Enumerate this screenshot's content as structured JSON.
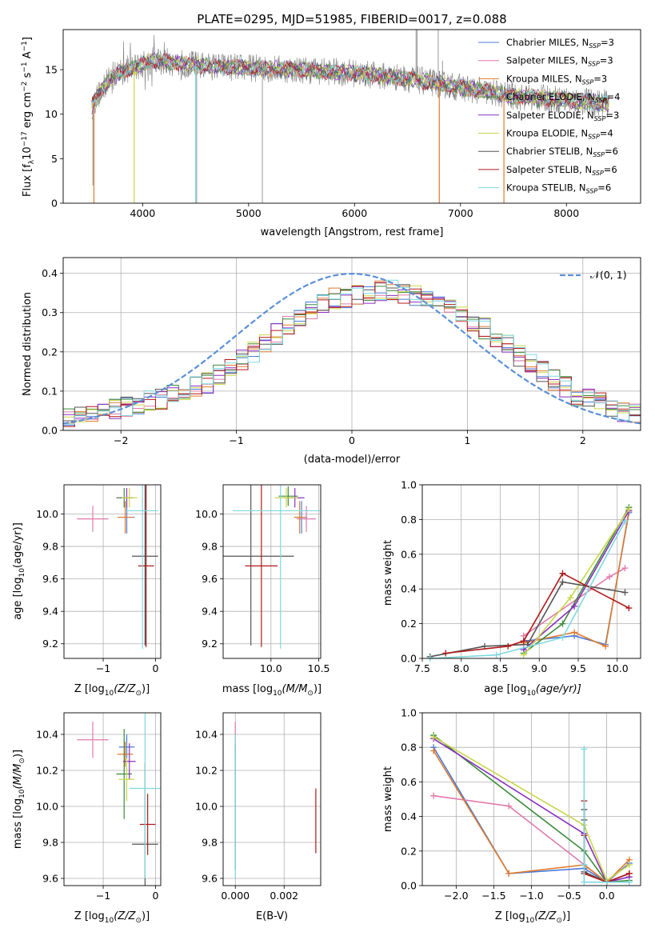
{
  "title": "PLATE=0295, MJD=51985, FIBERID=0017, z=0.088",
  "colors": {
    "Chabrier MILES": "#4b7bd8",
    "Salpeter MILES": "#e07aaa",
    "Kroupa MILES": "#e07b2e",
    "Chabrier ELODIE": "#3a8a3a",
    "Salpeter ELODIE": "#8a2fc0",
    "Kroupa ELODIE": "#c9d64a",
    "Chabrier STELIB": "#555555",
    "Salpeter STELIB": "#b01818",
    "Kroupa STELIB": "#7ed8e0",
    "gauss": "#5b8fd8",
    "grid": "#b0b0b0"
  },
  "chart_data": [
    {
      "id": "spectrum",
      "type": "line",
      "xlabel": "wavelength [Angstrom, rest frame]",
      "ylabel": "Flux [f",
      "ylabel_parts": [
        "Flux [f",
        "λ",
        "10",
        "−17",
        " erg cm",
        "−2",
        " s",
        "−1",
        " A",
        "−1",
        "]"
      ],
      "xlim": [
        3250,
        8700
      ],
      "ylim": [
        0,
        19.5
      ],
      "xticks": [
        4000,
        5000,
        6000,
        7000,
        8000
      ],
      "yticks": [
        0,
        5,
        10,
        15
      ],
      "legend_position": "top-right",
      "legend": [
        {
          "name": "Chabrier MILES, N",
          "sub": "SSP",
          "tail": "=3"
        },
        {
          "name": "Salpeter MILES, N",
          "sub": "SSP",
          "tail": "=3"
        },
        {
          "name": "Kroupa MILES, N",
          "sub": "SSP",
          "tail": "=3"
        },
        {
          "name": "Chabrier ELODIE, N",
          "sub": "SSP",
          "tail": "=4"
        },
        {
          "name": "Salpeter ELODIE, N",
          "sub": "SSP",
          "tail": "=3"
        },
        {
          "name": "Kroupa ELODIE, N",
          "sub": "SSP",
          "tail": "=4"
        },
        {
          "name": "Chabrier STELIB, N",
          "sub": "SSP",
          "tail": "=6"
        },
        {
          "name": "Salpeter STELIB, N",
          "sub": "SSP",
          "tail": "=6"
        },
        {
          "name": "Kroupa STELIB, N",
          "sub": "SSP",
          "tail": "=6"
        }
      ],
      "continuum": {
        "x": [
          3500,
          3600,
          3700,
          3800,
          3900,
          4000,
          4100,
          4300,
          4600,
          5000,
          5500,
          6000,
          6500,
          7000,
          7500,
          8000,
          8400
        ],
        "y": [
          10.5,
          12.5,
          14.0,
          14.8,
          15.2,
          15.6,
          16.0,
          15.8,
          15.4,
          15.2,
          15.0,
          14.6,
          14.0,
          13.0,
          12.0,
          11.6,
          11.2
        ]
      }
    },
    {
      "id": "residual-histogram",
      "type": "bar",
      "xlabel": "(data-model)/error",
      "ylabel": "Normed distribution",
      "xlim": [
        -2.5,
        2.5
      ],
      "ylim": [
        0,
        0.44
      ],
      "xticks": [
        -2,
        -1,
        0,
        1,
        2
      ],
      "yticks": [
        0.0,
        0.1,
        0.2,
        0.3,
        0.4
      ],
      "bin_width": 0.1,
      "values_envelope": [
        0.03,
        0.035,
        0.04,
        0.05,
        0.055,
        0.06,
        0.065,
        0.075,
        0.08,
        0.09,
        0.1,
        0.11,
        0.12,
        0.14,
        0.16,
        0.18,
        0.2,
        0.22,
        0.245,
        0.27,
        0.29,
        0.31,
        0.325,
        0.335,
        0.34,
        0.345,
        0.35,
        0.355,
        0.355,
        0.35,
        0.345,
        0.34,
        0.33,
        0.315,
        0.3,
        0.28,
        0.26,
        0.24,
        0.22,
        0.19,
        0.17,
        0.15,
        0.13,
        0.11,
        0.09,
        0.08,
        0.07,
        0.06,
        0.05,
        0.045
      ],
      "legend": [
        "𝒩(0, 1)"
      ],
      "legend_position": "top-right"
    },
    {
      "id": "age-vs-Z",
      "type": "scatter",
      "xlabel": "Z [log",
      "xlabel_parts": [
        "Z [log",
        "10",
        "(Z/Z",
        "⊙",
        ")]"
      ],
      "ylabel": "age  [log",
      "ylabel_parts": [
        "age  [log",
        "10",
        "(age/yr)]"
      ],
      "xlim": [
        -1.75,
        0.1
      ],
      "ylim": [
        9.11,
        10.18
      ],
      "xticks": [
        -1,
        0
      ],
      "yticks": [
        9.2,
        9.4,
        9.6,
        9.8,
        10.0
      ],
      "points": [
        {
          "series": "Chabrier MILES",
          "x": -0.55,
          "y": 9.98,
          "xerr": 0.15,
          "yerr": 0.1
        },
        {
          "series": "Salpeter MILES",
          "x": -1.2,
          "y": 9.97,
          "xerr": 0.3,
          "yerr": 0.08
        },
        {
          "series": "Kroupa MILES",
          "x": -0.58,
          "y": 9.98,
          "xerr": 0.15,
          "yerr": 0.1
        },
        {
          "series": "Chabrier ELODIE",
          "x": -0.6,
          "y": 10.1,
          "xerr": 0.15,
          "yerr": 0.06
        },
        {
          "series": "Salpeter ELODIE",
          "x": -0.55,
          "y": 10.1,
          "xerr": 0.12,
          "yerr": 0.06
        },
        {
          "series": "Kroupa ELODIE",
          "x": -0.5,
          "y": 10.1,
          "xerr": 0.15,
          "yerr": 0.06
        },
        {
          "series": "Chabrier STELIB",
          "x": -0.2,
          "y": 9.74,
          "xerr": 0.25,
          "yerr": 0.55
        },
        {
          "series": "Salpeter STELIB",
          "x": -0.18,
          "y": 9.68,
          "xerr": 0.15,
          "yerr": 0.5
        },
        {
          "series": "Kroupa STELIB",
          "x": -0.25,
          "y": 10.02,
          "xerr": 0.3,
          "yerr": 0.85
        }
      ]
    },
    {
      "id": "age-vs-mass",
      "type": "scatter",
      "xlabel": "mass [log",
      "xlabel_parts": [
        "mass [log",
        "10",
        "(M/M",
        "⊙",
        ")]"
      ],
      "xlim": [
        9.5,
        10.52
      ],
      "ylim": [
        9.11,
        10.18
      ],
      "xticks": [
        10.0,
        10.5
      ],
      "yticks": [
        9.2,
        9.4,
        9.6,
        9.8,
        10.0
      ],
      "points": [
        {
          "series": "Chabrier MILES",
          "x": 10.32,
          "y": 9.98,
          "xerr": 0.06,
          "yerr": 0.1
        },
        {
          "series": "Salpeter MILES",
          "x": 10.37,
          "y": 9.97,
          "xerr": 0.1,
          "yerr": 0.08
        },
        {
          "series": "Kroupa MILES",
          "x": 10.3,
          "y": 9.98,
          "xerr": 0.06,
          "yerr": 0.1
        },
        {
          "series": "Chabrier ELODIE",
          "x": 10.18,
          "y": 10.11,
          "xerr": 0.1,
          "yerr": 0.06
        },
        {
          "series": "Salpeter ELODIE",
          "x": 10.25,
          "y": 10.1,
          "xerr": 0.1,
          "yerr": 0.06
        },
        {
          "series": "Kroupa ELODIE",
          "x": 10.16,
          "y": 10.1,
          "xerr": 0.12,
          "yerr": 0.06
        },
        {
          "series": "Chabrier STELIB",
          "x": 9.79,
          "y": 9.74,
          "xerr": 0.45,
          "yerr": 0.55
        },
        {
          "series": "Salpeter STELIB",
          "x": 9.9,
          "y": 9.68,
          "xerr": 0.17,
          "yerr": 0.5
        },
        {
          "series": "Kroupa STELIB",
          "x": 10.1,
          "y": 10.02,
          "xerr": 0.5,
          "yerr": 0.85
        }
      ]
    },
    {
      "id": "mass-weight-vs-age",
      "type": "line",
      "xlabel": "age  [log",
      "xlabel_parts": [
        "age  [log",
        "10",
        "(age/yr)]"
      ],
      "ylabel": "mass weight",
      "xlim": [
        7.5,
        10.3
      ],
      "ylim": [
        0,
        1.0
      ],
      "xticks": [
        7.5,
        8.0,
        8.5,
        9.0,
        9.5,
        10.0
      ],
      "yticks": [
        0.0,
        0.2,
        0.4,
        0.6,
        0.8,
        1.0
      ],
      "series": [
        {
          "name": "Chabrier MILES",
          "x": [
            8.8,
            9.45,
            9.85,
            10.15
          ],
          "y": [
            0.1,
            0.13,
            0.08,
            0.84
          ]
        },
        {
          "name": "Salpeter MILES",
          "x": [
            8.8,
            9.9,
            10.1
          ],
          "y": [
            0.13,
            0.47,
            0.52
          ]
        },
        {
          "name": "Kroupa MILES",
          "x": [
            8.8,
            9.45,
            9.85,
            10.15
          ],
          "y": [
            0.09,
            0.15,
            0.07,
            0.85
          ]
        },
        {
          "name": "Chabrier ELODIE",
          "x": [
            8.8,
            9.3,
            10.15
          ],
          "y": [
            0.03,
            0.2,
            0.87
          ]
        },
        {
          "name": "Salpeter ELODIE",
          "x": [
            8.8,
            9.45,
            10.15
          ],
          "y": [
            0.05,
            0.3,
            0.85
          ]
        },
        {
          "name": "Kroupa ELODIE",
          "x": [
            8.8,
            9.4,
            10.15
          ],
          "y": [
            0.02,
            0.35,
            0.86
          ]
        },
        {
          "name": "Chabrier STELIB",
          "x": [
            7.6,
            8.3,
            8.85,
            9.3,
            10.1
          ],
          "y": [
            0.01,
            0.07,
            0.08,
            0.44,
            0.38
          ]
        },
        {
          "name": "Salpeter STELIB",
          "x": [
            7.8,
            8.6,
            8.8,
            9.3,
            10.15
          ],
          "y": [
            0.03,
            0.07,
            0.1,
            0.49,
            0.29
          ]
        },
        {
          "name": "Kroupa STELIB",
          "x": [
            7.6,
            8.45,
            9.3,
            10.1
          ],
          "y": [
            0.0,
            0.02,
            0.12,
            0.79
          ]
        }
      ]
    },
    {
      "id": "mass-vs-Z",
      "type": "scatter",
      "xlabel": "Z [log",
      "xlabel_parts": [
        "Z [log",
        "10",
        "(Z/Z",
        "⊙",
        ")]"
      ],
      "ylabel": "mass [log",
      "ylabel_parts": [
        "mass [log",
        "10",
        "(M/M",
        "⊙",
        ")]"
      ],
      "xlim": [
        -1.75,
        0.1
      ],
      "ylim": [
        9.56,
        10.52
      ],
      "xticks": [
        -1,
        0
      ],
      "yticks": [
        9.6,
        9.8,
        10.0,
        10.2,
        10.4
      ],
      "points": [
        {
          "series": "Chabrier MILES",
          "x": -0.55,
          "y": 10.33,
          "xerr": 0.15,
          "yerr": 0.07
        },
        {
          "series": "Salpeter MILES",
          "x": -1.2,
          "y": 10.37,
          "xerr": 0.3,
          "yerr": 0.1
        },
        {
          "series": "Kroupa MILES",
          "x": -0.58,
          "y": 10.29,
          "xerr": 0.15,
          "yerr": 0.07
        },
        {
          "series": "Chabrier ELODIE",
          "x": -0.6,
          "y": 10.18,
          "xerr": 0.15,
          "yerr": 0.25
        },
        {
          "series": "Salpeter ELODIE",
          "x": -0.5,
          "y": 10.25,
          "xerr": 0.12,
          "yerr": 0.1
        },
        {
          "series": "Kroupa ELODIE",
          "x": -0.55,
          "y": 10.15,
          "xerr": 0.15,
          "yerr": 0.12
        },
        {
          "series": "Chabrier STELIB",
          "x": -0.2,
          "y": 9.79,
          "xerr": 0.25,
          "yerr": 0.45
        },
        {
          "series": "Salpeter STELIB",
          "x": -0.15,
          "y": 9.9,
          "xerr": 0.15,
          "yerr": 0.17
        },
        {
          "series": "Kroupa STELIB",
          "x": -0.2,
          "y": 10.1,
          "xerr": 0.3,
          "yerr": 0.5
        }
      ]
    },
    {
      "id": "mass-vs-ebv",
      "type": "scatter",
      "xlabel": "E(B-V)",
      "xlim": [
        -0.0005,
        0.0035
      ],
      "ylim": [
        9.56,
        10.52
      ],
      "xticks": [
        0.0,
        0.002
      ],
      "yticks": [
        9.6,
        9.8,
        10.0,
        10.2,
        10.4
      ],
      "points": [
        {
          "series": "Salpeter MILES",
          "x": 0.0,
          "y": 10.37,
          "yerr": 0.1
        },
        {
          "series": "Chabrier STELIB",
          "x": 0.0,
          "y": 10.0,
          "yerr": 0.35
        },
        {
          "series": "Kroupa STELIB",
          "x": 0.0,
          "y": 10.0,
          "yerr": 0.4
        },
        {
          "series": "Salpeter STELIB",
          "x": 0.0033,
          "y": 9.92,
          "yerr": 0.18
        }
      ]
    },
    {
      "id": "mass-weight-vs-Z",
      "type": "line",
      "xlabel": "Z [log",
      "xlabel_parts": [
        "Z [log",
        "10",
        "(Z/Z",
        "⊙",
        ")]"
      ],
      "ylabel": "mass weight",
      "xlim": [
        -2.45,
        0.45
      ],
      "ylim": [
        0,
        1.0
      ],
      "xticks": [
        -2.0,
        -1.5,
        -1.0,
        -0.5,
        0.0
      ],
      "yticks": [
        0.0,
        0.2,
        0.4,
        0.6,
        0.8,
        1.0
      ],
      "series": [
        {
          "name": "Chabrier MILES",
          "x": [
            -2.3,
            -1.3,
            -0.3,
            0.0,
            0.3
          ],
          "y": [
            0.8,
            0.07,
            0.1,
            0.02,
            0.13
          ]
        },
        {
          "name": "Salpeter MILES",
          "x": [
            -2.3,
            -1.3,
            0.0,
            0.3
          ],
          "y": [
            0.52,
            0.46,
            0.02,
            0.07
          ]
        },
        {
          "name": "Kroupa MILES",
          "x": [
            -2.3,
            -1.3,
            -0.3,
            0.0,
            0.3
          ],
          "y": [
            0.78,
            0.07,
            0.12,
            0.02,
            0.15
          ]
        },
        {
          "name": "Chabrier ELODIE",
          "x": [
            -2.3,
            -0.3,
            0.0,
            0.3
          ],
          "y": [
            0.87,
            0.2,
            0.02,
            0.03
          ]
        },
        {
          "name": "Salpeter ELODIE",
          "x": [
            -2.3,
            -0.3,
            0.0,
            0.3
          ],
          "y": [
            0.85,
            0.3,
            0.02,
            0.05
          ]
        },
        {
          "name": "Kroupa ELODIE",
          "x": [
            -2.3,
            -0.3,
            0.0,
            0.3
          ],
          "y": [
            0.86,
            0.35,
            0.03,
            0.12
          ]
        },
        {
          "name": "Chabrier STELIB",
          "x": [
            -0.3,
            -0.3,
            -0.3,
            0.0,
            0.3
          ],
          "y": [
            0.44,
            0.38,
            0.08,
            0.02,
            0.07
          ]
        },
        {
          "name": "Salpeter STELIB",
          "x": [
            -0.3,
            -0.3,
            -0.3,
            0.0,
            0.3
          ],
          "y": [
            0.49,
            0.29,
            0.07,
            0.02,
            0.07
          ]
        },
        {
          "name": "Kroupa STELIB",
          "x": [
            -0.3,
            -0.3,
            -0.3,
            0.0,
            0.3
          ],
          "y": [
            0.79,
            0.12,
            0.02,
            0.02,
            0.02
          ]
        }
      ]
    }
  ]
}
